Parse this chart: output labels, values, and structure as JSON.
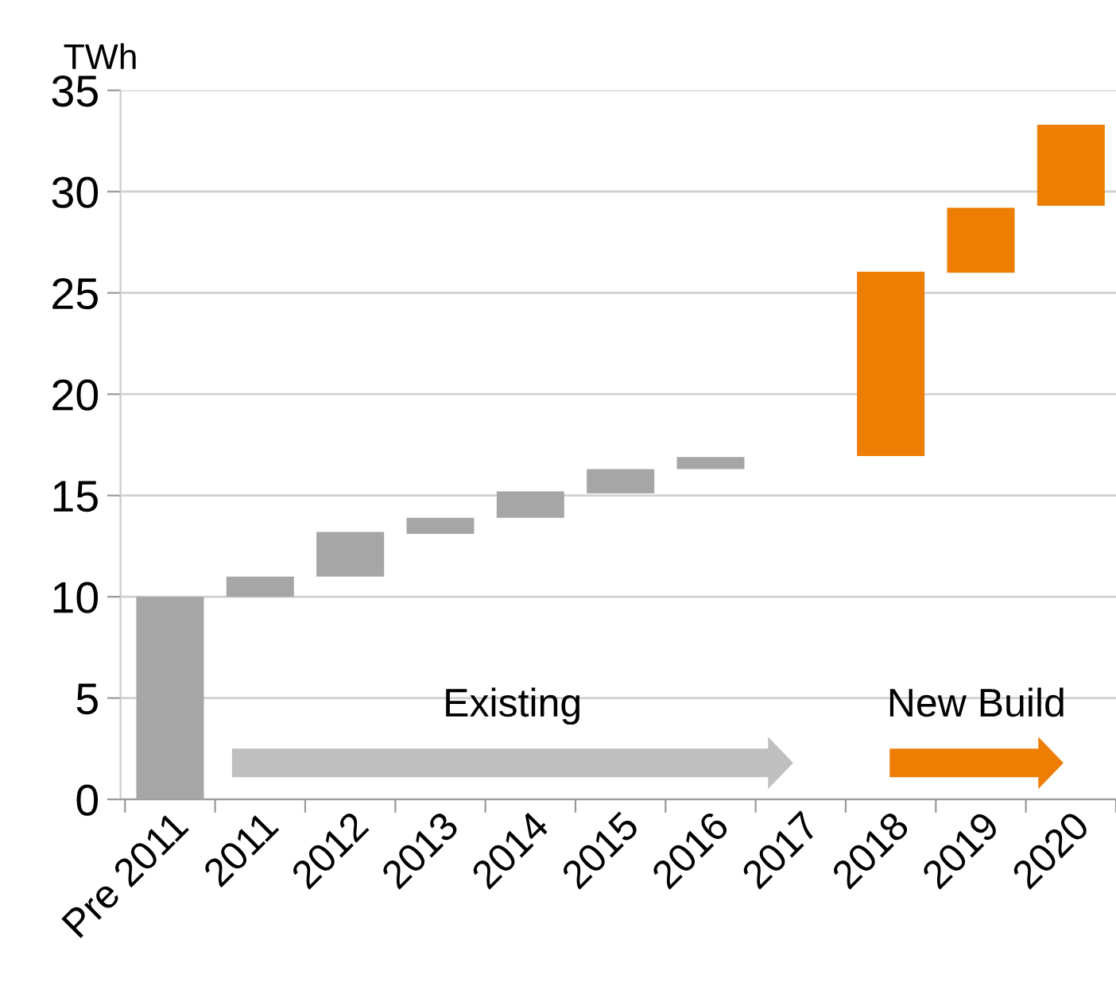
{
  "chart_data": {
    "type": "bar",
    "ylabel": "TWh",
    "categories": [
      "Pre 2011",
      "2011",
      "2012",
      "2013",
      "2014",
      "2015",
      "2016",
      "2017",
      "2018",
      "2019",
      "2020"
    ],
    "values": [
      10,
      1.0,
      2.2,
      0.8,
      1.3,
      1.2,
      0.6,
      null,
      9.1,
      3.2,
      4.0
    ],
    "base": [
      0,
      10,
      11.0,
      13.1,
      13.9,
      15.1,
      16.3,
      null,
      16.95,
      26.0,
      29.3
    ],
    "colors": [
      "#a6a6a6",
      "#a6a6a6",
      "#a6a6a6",
      "#a6a6a6",
      "#a6a6a6",
      "#a6a6a6",
      "#a6a6a6",
      "#a6a6a6",
      "#ed7d03",
      "#ed7d03",
      "#ed7d03"
    ],
    "ylim": [
      0,
      35
    ],
    "yticks": [
      0,
      5,
      10,
      15,
      20,
      25,
      30,
      35
    ],
    "grid": "y",
    "annotations": [
      "Existing",
      "New Build"
    ]
  }
}
